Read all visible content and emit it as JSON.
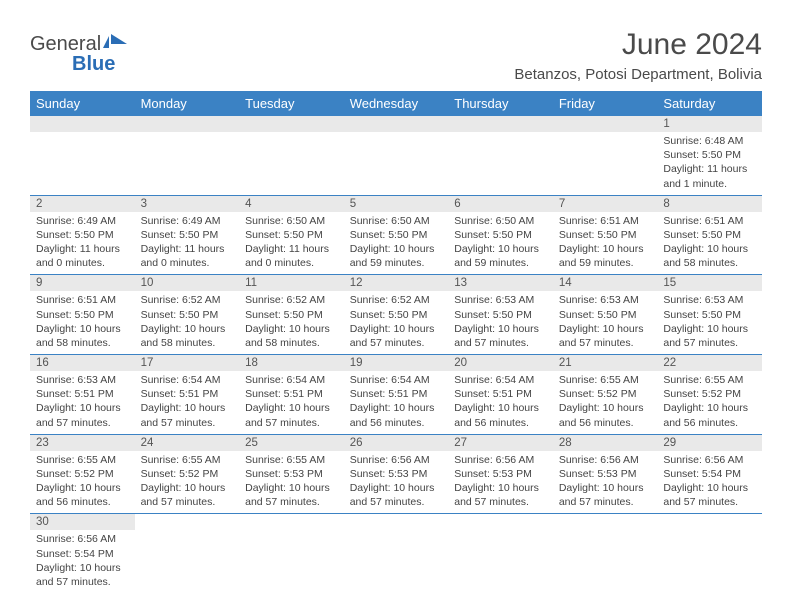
{
  "logo": {
    "text1": "General",
    "text2": "Blue"
  },
  "title": "June 2024",
  "location": "Betanzos, Potosi Department, Bolivia",
  "colors": {
    "header_band": "#3b82c4",
    "day_num_bg": "#e9e9e9",
    "text": "#4a4a4a",
    "rule": "#3b82c4"
  },
  "weekdays": [
    "Sunday",
    "Monday",
    "Tuesday",
    "Wednesday",
    "Thursday",
    "Friday",
    "Saturday"
  ],
  "weeks": [
    [
      null,
      null,
      null,
      null,
      null,
      null,
      {
        "n": "1",
        "sr": "Sunrise: 6:48 AM",
        "ss": "Sunset: 5:50 PM",
        "dl": "Daylight: 11 hours and 1 minute."
      }
    ],
    [
      {
        "n": "2",
        "sr": "Sunrise: 6:49 AM",
        "ss": "Sunset: 5:50 PM",
        "dl": "Daylight: 11 hours and 0 minutes."
      },
      {
        "n": "3",
        "sr": "Sunrise: 6:49 AM",
        "ss": "Sunset: 5:50 PM",
        "dl": "Daylight: 11 hours and 0 minutes."
      },
      {
        "n": "4",
        "sr": "Sunrise: 6:50 AM",
        "ss": "Sunset: 5:50 PM",
        "dl": "Daylight: 11 hours and 0 minutes."
      },
      {
        "n": "5",
        "sr": "Sunrise: 6:50 AM",
        "ss": "Sunset: 5:50 PM",
        "dl": "Daylight: 10 hours and 59 minutes."
      },
      {
        "n": "6",
        "sr": "Sunrise: 6:50 AM",
        "ss": "Sunset: 5:50 PM",
        "dl": "Daylight: 10 hours and 59 minutes."
      },
      {
        "n": "7",
        "sr": "Sunrise: 6:51 AM",
        "ss": "Sunset: 5:50 PM",
        "dl": "Daylight: 10 hours and 59 minutes."
      },
      {
        "n": "8",
        "sr": "Sunrise: 6:51 AM",
        "ss": "Sunset: 5:50 PM",
        "dl": "Daylight: 10 hours and 58 minutes."
      }
    ],
    [
      {
        "n": "9",
        "sr": "Sunrise: 6:51 AM",
        "ss": "Sunset: 5:50 PM",
        "dl": "Daylight: 10 hours and 58 minutes."
      },
      {
        "n": "10",
        "sr": "Sunrise: 6:52 AM",
        "ss": "Sunset: 5:50 PM",
        "dl": "Daylight: 10 hours and 58 minutes."
      },
      {
        "n": "11",
        "sr": "Sunrise: 6:52 AM",
        "ss": "Sunset: 5:50 PM",
        "dl": "Daylight: 10 hours and 58 minutes."
      },
      {
        "n": "12",
        "sr": "Sunrise: 6:52 AM",
        "ss": "Sunset: 5:50 PM",
        "dl": "Daylight: 10 hours and 57 minutes."
      },
      {
        "n": "13",
        "sr": "Sunrise: 6:53 AM",
        "ss": "Sunset: 5:50 PM",
        "dl": "Daylight: 10 hours and 57 minutes."
      },
      {
        "n": "14",
        "sr": "Sunrise: 6:53 AM",
        "ss": "Sunset: 5:50 PM",
        "dl": "Daylight: 10 hours and 57 minutes."
      },
      {
        "n": "15",
        "sr": "Sunrise: 6:53 AM",
        "ss": "Sunset: 5:50 PM",
        "dl": "Daylight: 10 hours and 57 minutes."
      }
    ],
    [
      {
        "n": "16",
        "sr": "Sunrise: 6:53 AM",
        "ss": "Sunset: 5:51 PM",
        "dl": "Daylight: 10 hours and 57 minutes."
      },
      {
        "n": "17",
        "sr": "Sunrise: 6:54 AM",
        "ss": "Sunset: 5:51 PM",
        "dl": "Daylight: 10 hours and 57 minutes."
      },
      {
        "n": "18",
        "sr": "Sunrise: 6:54 AM",
        "ss": "Sunset: 5:51 PM",
        "dl": "Daylight: 10 hours and 57 minutes."
      },
      {
        "n": "19",
        "sr": "Sunrise: 6:54 AM",
        "ss": "Sunset: 5:51 PM",
        "dl": "Daylight: 10 hours and 56 minutes."
      },
      {
        "n": "20",
        "sr": "Sunrise: 6:54 AM",
        "ss": "Sunset: 5:51 PM",
        "dl": "Daylight: 10 hours and 56 minutes."
      },
      {
        "n": "21",
        "sr": "Sunrise: 6:55 AM",
        "ss": "Sunset: 5:52 PM",
        "dl": "Daylight: 10 hours and 56 minutes."
      },
      {
        "n": "22",
        "sr": "Sunrise: 6:55 AM",
        "ss": "Sunset: 5:52 PM",
        "dl": "Daylight: 10 hours and 56 minutes."
      }
    ],
    [
      {
        "n": "23",
        "sr": "Sunrise: 6:55 AM",
        "ss": "Sunset: 5:52 PM",
        "dl": "Daylight: 10 hours and 56 minutes."
      },
      {
        "n": "24",
        "sr": "Sunrise: 6:55 AM",
        "ss": "Sunset: 5:52 PM",
        "dl": "Daylight: 10 hours and 57 minutes."
      },
      {
        "n": "25",
        "sr": "Sunrise: 6:55 AM",
        "ss": "Sunset: 5:53 PM",
        "dl": "Daylight: 10 hours and 57 minutes."
      },
      {
        "n": "26",
        "sr": "Sunrise: 6:56 AM",
        "ss": "Sunset: 5:53 PM",
        "dl": "Daylight: 10 hours and 57 minutes."
      },
      {
        "n": "27",
        "sr": "Sunrise: 6:56 AM",
        "ss": "Sunset: 5:53 PM",
        "dl": "Daylight: 10 hours and 57 minutes."
      },
      {
        "n": "28",
        "sr": "Sunrise: 6:56 AM",
        "ss": "Sunset: 5:53 PM",
        "dl": "Daylight: 10 hours and 57 minutes."
      },
      {
        "n": "29",
        "sr": "Sunrise: 6:56 AM",
        "ss": "Sunset: 5:54 PM",
        "dl": "Daylight: 10 hours and 57 minutes."
      }
    ],
    [
      {
        "n": "30",
        "sr": "Sunrise: 6:56 AM",
        "ss": "Sunset: 5:54 PM",
        "dl": "Daylight: 10 hours and 57 minutes."
      },
      null,
      null,
      null,
      null,
      null,
      null
    ]
  ]
}
